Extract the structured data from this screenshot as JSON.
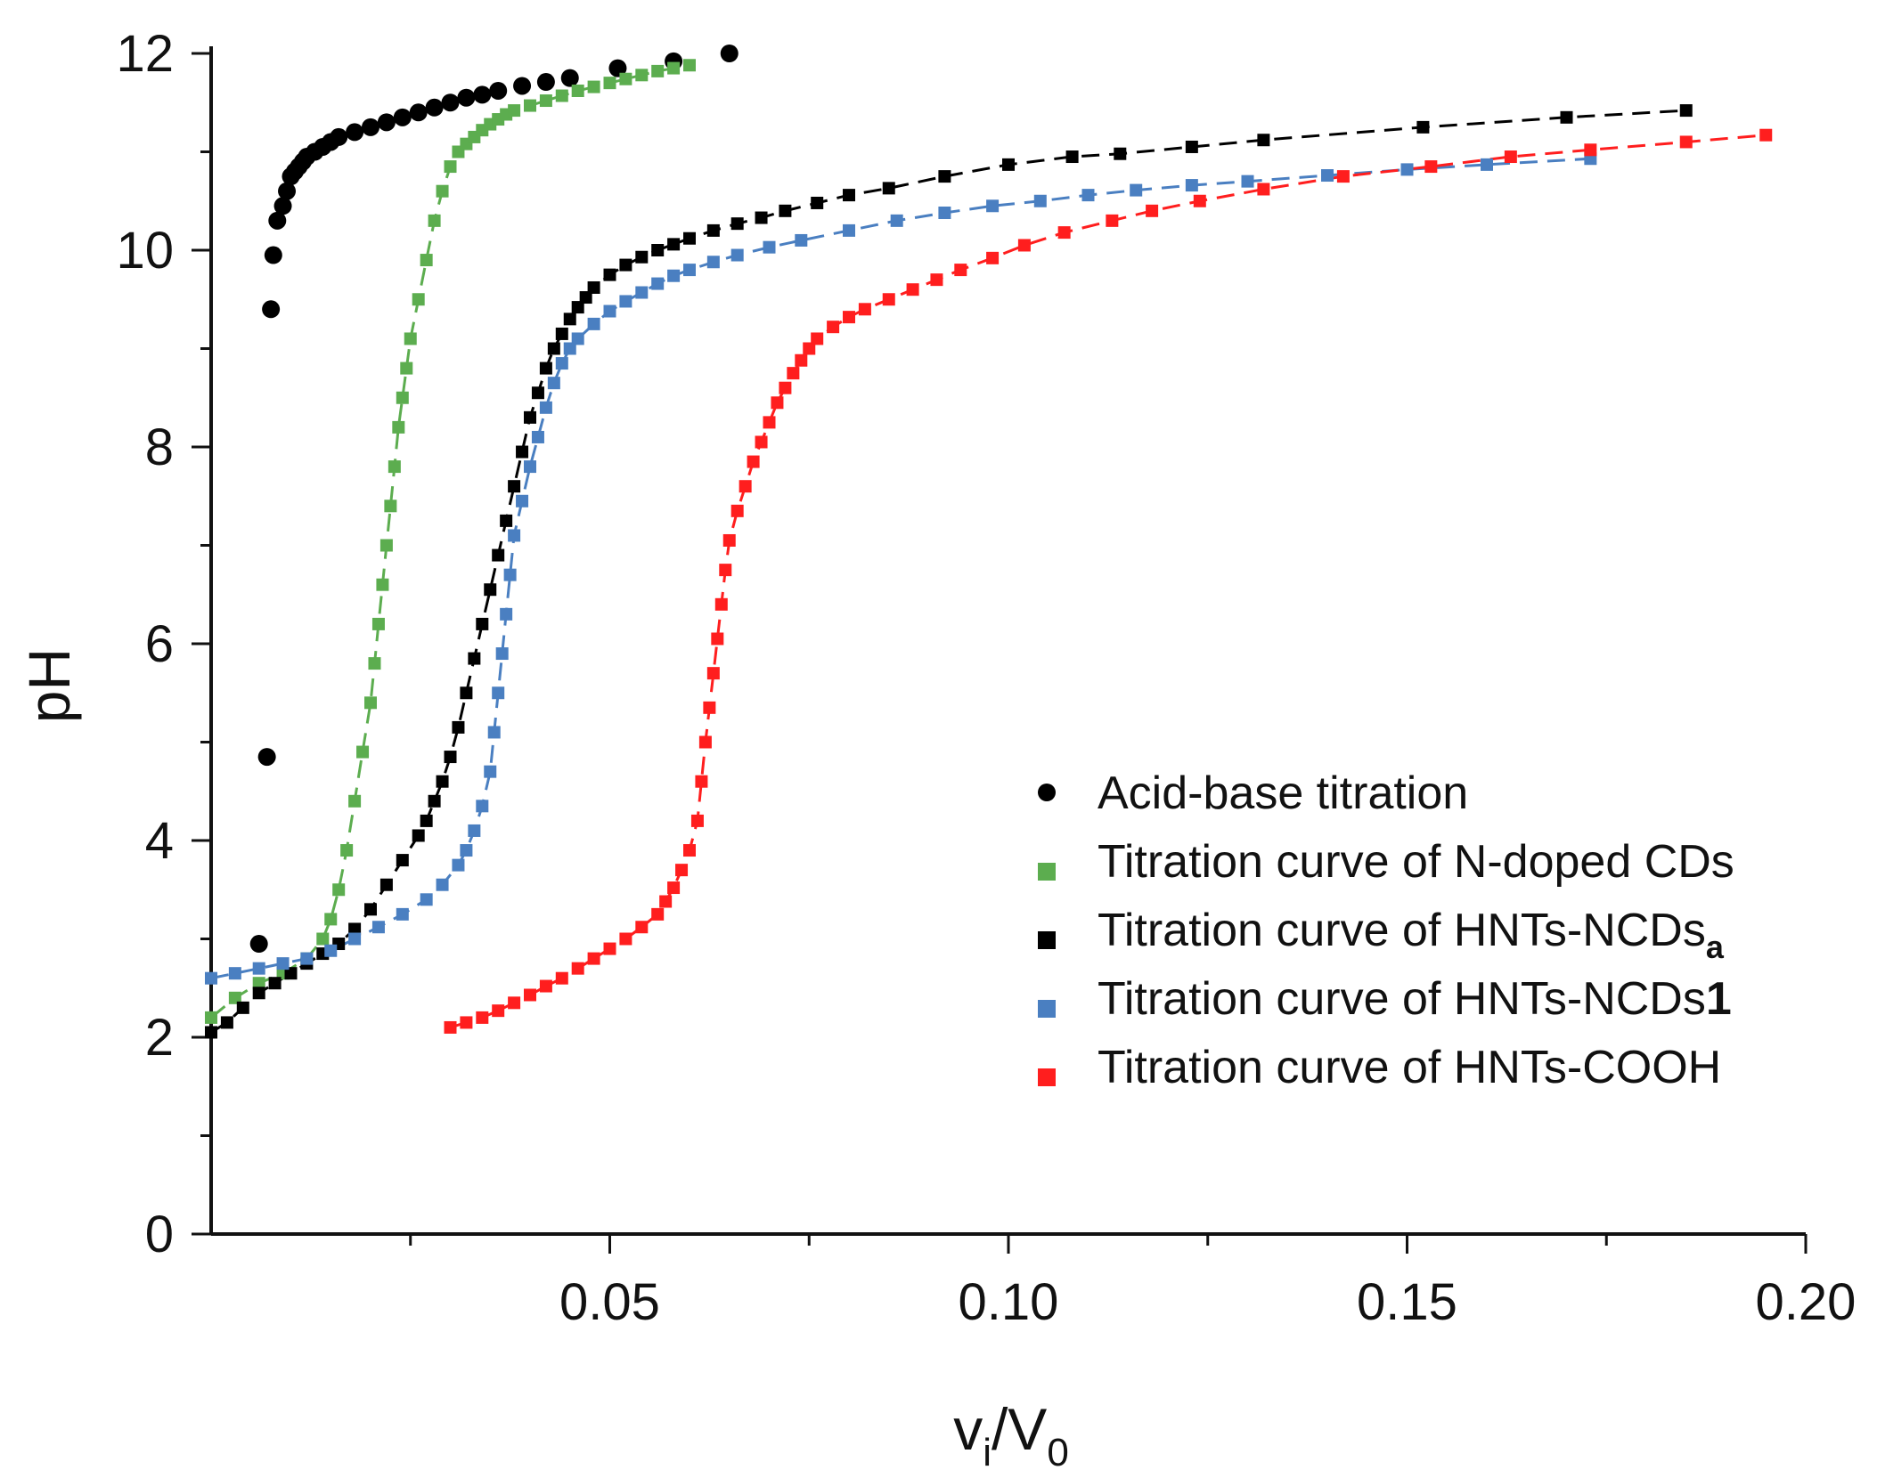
{
  "chart_data": {
    "type": "scatter",
    "title": "",
    "xlabel": {
      "base": "v",
      "sub": "i",
      "sep": "/V",
      "sub2": "0"
    },
    "ylabel": "pH",
    "xlim": [
      0,
      0.2
    ],
    "ylim": [
      0,
      12
    ],
    "x_ticks": [
      {
        "value": 0.05,
        "label": "0.05"
      },
      {
        "value": 0.1,
        "label": "0.10"
      },
      {
        "value": 0.15,
        "label": "0.15"
      },
      {
        "value": 0.2,
        "label": "0.20"
      }
    ],
    "y_ticks": [
      {
        "value": 0,
        "label": "0"
      },
      {
        "value": 2,
        "label": "2"
      },
      {
        "value": 4,
        "label": "4"
      },
      {
        "value": 6,
        "label": "6"
      },
      {
        "value": 8,
        "label": "8"
      },
      {
        "value": 10,
        "label": "10"
      },
      {
        "value": 12,
        "label": "12"
      }
    ],
    "legend_position": "bottom-right",
    "legend": [
      {
        "id": "acid",
        "text": "Acid-base titration",
        "sub": "",
        "bold_suffix": ""
      },
      {
        "id": "ncd",
        "text": "Titration curve of N-doped CDs",
        "sub": "",
        "bold_suffix": ""
      },
      {
        "id": "hntsa",
        "text": "Titration curve of HNTs-NCDs",
        "sub": "a",
        "bold_suffix": ""
      },
      {
        "id": "hnts1",
        "text": "Titration curve of HNTs-NCDs",
        "sub": "",
        "bold_suffix": "1"
      },
      {
        "id": "cooh",
        "text": "Titration curve of HNTs-COOH",
        "sub": "",
        "bold_suffix": ""
      }
    ],
    "series": [
      {
        "id": "acid",
        "name": "Acid-base titration",
        "color": "#000000",
        "marker": "circle",
        "fit": false,
        "points": [
          [
            0.006,
            2.95
          ],
          [
            0.007,
            4.85
          ],
          [
            0.0075,
            9.4
          ],
          [
            0.0078,
            9.95
          ],
          [
            0.0083,
            10.3
          ],
          [
            0.009,
            10.45
          ],
          [
            0.0095,
            10.6
          ],
          [
            0.01,
            10.75
          ],
          [
            0.0105,
            10.8
          ],
          [
            0.011,
            10.85
          ],
          [
            0.0115,
            10.9
          ],
          [
            0.012,
            10.95
          ],
          [
            0.013,
            11.0
          ],
          [
            0.014,
            11.05
          ],
          [
            0.015,
            11.1
          ],
          [
            0.016,
            11.15
          ],
          [
            0.018,
            11.2
          ],
          [
            0.02,
            11.25
          ],
          [
            0.022,
            11.3
          ],
          [
            0.024,
            11.35
          ],
          [
            0.026,
            11.4
          ],
          [
            0.028,
            11.45
          ],
          [
            0.03,
            11.5
          ],
          [
            0.032,
            11.55
          ],
          [
            0.034,
            11.58
          ],
          [
            0.036,
            11.62
          ],
          [
            0.039,
            11.67
          ],
          [
            0.042,
            11.71
          ],
          [
            0.045,
            11.75
          ],
          [
            0.051,
            11.85
          ],
          [
            0.058,
            11.92
          ],
          [
            0.065,
            12.0
          ]
        ]
      },
      {
        "id": "ncd",
        "name": "N-doped CDs",
        "color": "#5cad4f",
        "marker": "square",
        "fit": true,
        "points": [
          [
            0.0,
            2.2
          ],
          [
            0.003,
            2.4
          ],
          [
            0.006,
            2.55
          ],
          [
            0.009,
            2.65
          ],
          [
            0.012,
            2.8
          ],
          [
            0.014,
            3.0
          ],
          [
            0.015,
            3.2
          ],
          [
            0.016,
            3.5
          ],
          [
            0.017,
            3.9
          ],
          [
            0.018,
            4.4
          ],
          [
            0.019,
            4.9
          ],
          [
            0.02,
            5.4
          ],
          [
            0.0205,
            5.8
          ],
          [
            0.021,
            6.2
          ],
          [
            0.0215,
            6.6
          ],
          [
            0.022,
            7.0
          ],
          [
            0.0225,
            7.4
          ],
          [
            0.023,
            7.8
          ],
          [
            0.0235,
            8.2
          ],
          [
            0.024,
            8.5
          ],
          [
            0.0245,
            8.8
          ],
          [
            0.025,
            9.1
          ],
          [
            0.026,
            9.5
          ],
          [
            0.027,
            9.9
          ],
          [
            0.028,
            10.3
          ],
          [
            0.029,
            10.6
          ],
          [
            0.03,
            10.85
          ],
          [
            0.031,
            11.0
          ],
          [
            0.032,
            11.08
          ],
          [
            0.033,
            11.15
          ],
          [
            0.034,
            11.22
          ],
          [
            0.035,
            11.28
          ],
          [
            0.036,
            11.33
          ],
          [
            0.037,
            11.38
          ],
          [
            0.038,
            11.42
          ],
          [
            0.04,
            11.47
          ],
          [
            0.042,
            11.52
          ],
          [
            0.044,
            11.57
          ],
          [
            0.046,
            11.62
          ],
          [
            0.048,
            11.66
          ],
          [
            0.05,
            11.7
          ],
          [
            0.052,
            11.74
          ],
          [
            0.054,
            11.78
          ],
          [
            0.056,
            11.82
          ],
          [
            0.058,
            11.85
          ],
          [
            0.06,
            11.88
          ]
        ]
      },
      {
        "id": "hntsa",
        "name": "HNTs-NCDs a",
        "color": "#000000",
        "marker": "square",
        "fit": true,
        "points": [
          [
            0.0,
            2.05
          ],
          [
            0.002,
            2.15
          ],
          [
            0.004,
            2.3
          ],
          [
            0.006,
            2.45
          ],
          [
            0.008,
            2.55
          ],
          [
            0.01,
            2.65
          ],
          [
            0.012,
            2.75
          ],
          [
            0.014,
            2.85
          ],
          [
            0.016,
            2.95
          ],
          [
            0.018,
            3.1
          ],
          [
            0.02,
            3.3
          ],
          [
            0.022,
            3.55
          ],
          [
            0.024,
            3.8
          ],
          [
            0.026,
            4.05
          ],
          [
            0.027,
            4.2
          ],
          [
            0.028,
            4.4
          ],
          [
            0.029,
            4.6
          ],
          [
            0.03,
            4.85
          ],
          [
            0.031,
            5.15
          ],
          [
            0.032,
            5.5
          ],
          [
            0.033,
            5.85
          ],
          [
            0.034,
            6.2
          ],
          [
            0.035,
            6.55
          ],
          [
            0.036,
            6.9
          ],
          [
            0.037,
            7.25
          ],
          [
            0.038,
            7.6
          ],
          [
            0.039,
            7.95
          ],
          [
            0.04,
            8.3
          ],
          [
            0.041,
            8.55
          ],
          [
            0.042,
            8.8
          ],
          [
            0.043,
            9.0
          ],
          [
            0.044,
            9.15
          ],
          [
            0.045,
            9.3
          ],
          [
            0.046,
            9.42
          ],
          [
            0.047,
            9.52
          ],
          [
            0.048,
            9.62
          ],
          [
            0.05,
            9.75
          ],
          [
            0.052,
            9.85
          ],
          [
            0.054,
            9.93
          ],
          [
            0.056,
            10.0
          ],
          [
            0.058,
            10.06
          ],
          [
            0.06,
            10.12
          ],
          [
            0.063,
            10.2
          ],
          [
            0.066,
            10.27
          ],
          [
            0.069,
            10.33
          ],
          [
            0.072,
            10.4
          ],
          [
            0.076,
            10.48
          ],
          [
            0.08,
            10.56
          ],
          [
            0.085,
            10.63
          ],
          [
            0.092,
            10.75
          ],
          [
            0.1,
            10.87
          ],
          [
            0.108,
            10.95
          ],
          [
            0.114,
            10.98
          ],
          [
            0.123,
            11.05
          ],
          [
            0.132,
            11.12
          ],
          [
            0.152,
            11.25
          ],
          [
            0.17,
            11.35
          ],
          [
            0.185,
            11.42
          ]
        ]
      },
      {
        "id": "hnts1",
        "name": "HNTs-NCDs 1",
        "color": "#4a7fc1",
        "marker": "square",
        "fit": true,
        "points": [
          [
            0.0,
            2.6
          ],
          [
            0.003,
            2.65
          ],
          [
            0.006,
            2.7
          ],
          [
            0.009,
            2.75
          ],
          [
            0.012,
            2.8
          ],
          [
            0.015,
            2.88
          ],
          [
            0.018,
            3.0
          ],
          [
            0.021,
            3.12
          ],
          [
            0.024,
            3.25
          ],
          [
            0.027,
            3.4
          ],
          [
            0.029,
            3.55
          ],
          [
            0.031,
            3.75
          ],
          [
            0.032,
            3.9
          ],
          [
            0.033,
            4.1
          ],
          [
            0.034,
            4.35
          ],
          [
            0.035,
            4.7
          ],
          [
            0.0355,
            5.1
          ],
          [
            0.036,
            5.5
          ],
          [
            0.0365,
            5.9
          ],
          [
            0.037,
            6.3
          ],
          [
            0.0375,
            6.7
          ],
          [
            0.038,
            7.1
          ],
          [
            0.039,
            7.45
          ],
          [
            0.04,
            7.8
          ],
          [
            0.041,
            8.1
          ],
          [
            0.042,
            8.4
          ],
          [
            0.043,
            8.65
          ],
          [
            0.044,
            8.85
          ],
          [
            0.045,
            9.0
          ],
          [
            0.046,
            9.1
          ],
          [
            0.048,
            9.25
          ],
          [
            0.05,
            9.38
          ],
          [
            0.052,
            9.48
          ],
          [
            0.054,
            9.57
          ],
          [
            0.056,
            9.66
          ],
          [
            0.058,
            9.74
          ],
          [
            0.06,
            9.8
          ],
          [
            0.063,
            9.88
          ],
          [
            0.066,
            9.95
          ],
          [
            0.07,
            10.03
          ],
          [
            0.074,
            10.1
          ],
          [
            0.08,
            10.2
          ],
          [
            0.086,
            10.3
          ],
          [
            0.092,
            10.38
          ],
          [
            0.098,
            10.45
          ],
          [
            0.104,
            10.5
          ],
          [
            0.11,
            10.56
          ],
          [
            0.116,
            10.61
          ],
          [
            0.123,
            10.66
          ],
          [
            0.13,
            10.7
          ],
          [
            0.14,
            10.76
          ],
          [
            0.15,
            10.82
          ],
          [
            0.16,
            10.87
          ],
          [
            0.173,
            10.93
          ]
        ]
      },
      {
        "id": "cooh",
        "name": "HNTs-COOH",
        "color": "#ff1e1e",
        "marker": "square",
        "fit": true,
        "points": [
          [
            0.03,
            2.1
          ],
          [
            0.032,
            2.15
          ],
          [
            0.034,
            2.2
          ],
          [
            0.036,
            2.27
          ],
          [
            0.038,
            2.35
          ],
          [
            0.04,
            2.43
          ],
          [
            0.042,
            2.52
          ],
          [
            0.044,
            2.6
          ],
          [
            0.046,
            2.7
          ],
          [
            0.048,
            2.8
          ],
          [
            0.05,
            2.9
          ],
          [
            0.052,
            3.0
          ],
          [
            0.054,
            3.12
          ],
          [
            0.056,
            3.25
          ],
          [
            0.057,
            3.38
          ],
          [
            0.058,
            3.52
          ],
          [
            0.059,
            3.7
          ],
          [
            0.06,
            3.9
          ],
          [
            0.061,
            4.2
          ],
          [
            0.0615,
            4.6
          ],
          [
            0.062,
            5.0
          ],
          [
            0.0625,
            5.35
          ],
          [
            0.063,
            5.7
          ],
          [
            0.0635,
            6.05
          ],
          [
            0.064,
            6.4
          ],
          [
            0.0645,
            6.75
          ],
          [
            0.065,
            7.05
          ],
          [
            0.066,
            7.35
          ],
          [
            0.067,
            7.6
          ],
          [
            0.068,
            7.85
          ],
          [
            0.069,
            8.05
          ],
          [
            0.07,
            8.25
          ],
          [
            0.071,
            8.45
          ],
          [
            0.072,
            8.6
          ],
          [
            0.073,
            8.75
          ],
          [
            0.074,
            8.88
          ],
          [
            0.075,
            9.0
          ],
          [
            0.076,
            9.1
          ],
          [
            0.078,
            9.22
          ],
          [
            0.08,
            9.32
          ],
          [
            0.082,
            9.4
          ],
          [
            0.085,
            9.5
          ],
          [
            0.088,
            9.6
          ],
          [
            0.091,
            9.7
          ],
          [
            0.094,
            9.8
          ],
          [
            0.098,
            9.92
          ],
          [
            0.102,
            10.05
          ],
          [
            0.107,
            10.18
          ],
          [
            0.113,
            10.3
          ],
          [
            0.118,
            10.4
          ],
          [
            0.124,
            10.5
          ],
          [
            0.132,
            10.62
          ],
          [
            0.142,
            10.75
          ],
          [
            0.153,
            10.85
          ],
          [
            0.163,
            10.95
          ],
          [
            0.173,
            11.02
          ],
          [
            0.185,
            11.1
          ],
          [
            0.195,
            11.17
          ]
        ]
      }
    ]
  }
}
